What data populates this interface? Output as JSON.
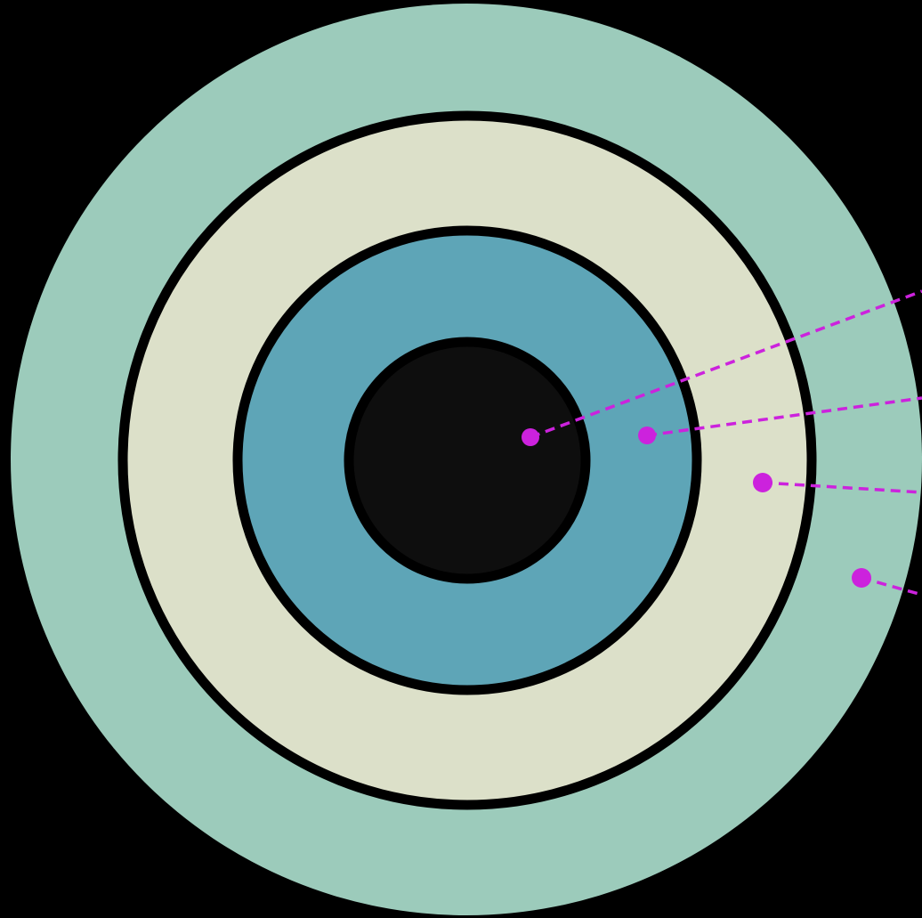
{
  "diagram": {
    "type": "concentric-rings",
    "background_color": "#000000",
    "outline_color": "#000000",
    "rings": [
      {
        "id": "outer-ring",
        "color": "#9ccbbb",
        "outlined": false
      },
      {
        "id": "ring-3",
        "color": "#dce0c9",
        "outlined": true
      },
      {
        "id": "ring-2",
        "color": "#5ea5b7",
        "outlined": true
      },
      {
        "id": "core",
        "color": "#0e0e0e",
        "outlined": true
      }
    ],
    "callouts": {
      "color": "#cc22dd",
      "line_style": "dashed",
      "count": 4,
      "points_to": [
        "core",
        "ring-2",
        "ring-3",
        "outer-ring"
      ]
    }
  }
}
